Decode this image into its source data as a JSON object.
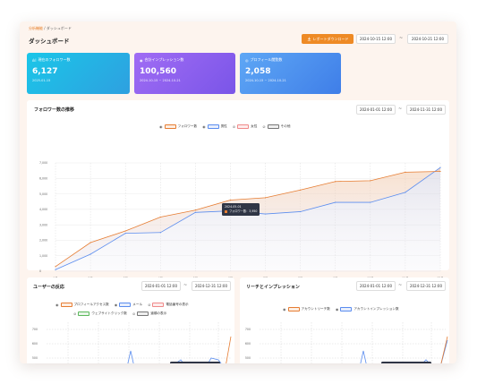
{
  "breadcrumb": {
    "home": "分析機能",
    "separator": " / ",
    "current": "ダッシュボード"
  },
  "page_title": "ダッシュボード",
  "header": {
    "download_label": "レポートダウンロード",
    "date_from": "2024-10-15 12:00",
    "date_to": "2024-10-21 12:00",
    "tilde": "~"
  },
  "cards": [
    {
      "label": "現在のフォロワー数",
      "value": "6,127",
      "sub": "2025-01-15",
      "icon": "chart-icon",
      "color_from": "#1bc6e8",
      "color_to": "#2ea0e0"
    },
    {
      "label": "合計インプレッション数",
      "value": "100,560",
      "sub": "2024-10-15 ~ 2024-10-21",
      "icon": "eye-icon",
      "color_from": "#a06cf4",
      "color_to": "#7a55e8"
    },
    {
      "label": "プロフィール閲覧数",
      "value": "2,058",
      "sub": "2024-10-15 ~ 2024-10-21",
      "icon": "user-icon",
      "color_from": "#5ea7f5",
      "color_to": "#3f7ee8"
    }
  ],
  "followers_panel": {
    "title": "フォロワー数の推移",
    "date_from": "2024-01-01 12:00",
    "date_to": "2024-11-31 12:00",
    "tilde": "~",
    "legend": [
      {
        "label": "フォロワー数",
        "color": "#e67d33",
        "icon": "eye-icon"
      },
      {
        "label": "男性",
        "color": "#5b8def",
        "icon": "eye-icon"
      },
      {
        "label": "女性",
        "color": "#f08a8a",
        "icon": "eye-off-icon"
      },
      {
        "label": "その他",
        "color": "#777777",
        "icon": "eye-off-icon"
      }
    ],
    "tooltip": {
      "date": "2024-05-01",
      "text": "フォロワー数：3,950"
    }
  },
  "users_panel": {
    "title": "ユーザーの反応",
    "date_from": "2024-01-01 12:00",
    "date_to": "2024-12-31 12:00",
    "tilde": "~",
    "legend_row1": [
      {
        "label": "プロフィールアクセス数",
        "color": "#e67d33",
        "icon": "eye-icon"
      },
      {
        "label": "メール",
        "color": "#5b8def",
        "icon": "eye-icon"
      },
      {
        "label": "電話番号の表示",
        "color": "#f08a8a",
        "icon": "eye-off-icon"
      }
    ],
    "legend_row2": [
      {
        "label": "ウェブサイトクリック数",
        "color": "#5cb85c",
        "icon": "eye-off-icon"
      },
      {
        "label": "道順の表示",
        "color": "#777777",
        "icon": "eye-off-icon"
      }
    ],
    "y_ticks": [
      "700",
      "600",
      "500"
    ]
  },
  "reach_panel": {
    "title": "リーチとインプレッション",
    "date_from": "2024-01-01 12:00",
    "date_to": "2024-12-31 12:00",
    "tilde": "~",
    "legend": [
      {
        "label": "アカウントリーチ数",
        "color": "#e67d33",
        "icon": "eye-icon"
      },
      {
        "label": "アカウントインプレッション数",
        "color": "#5b8def",
        "icon": "eye-icon"
      }
    ],
    "y_ticks": [
      "700",
      "600",
      "500"
    ]
  },
  "chart_data": [
    {
      "type": "area",
      "title": "フォロワー数の推移",
      "x": [
        "1月",
        "2月",
        "3月",
        "4月",
        "5月",
        "6月",
        "7月",
        "8月",
        "9月",
        "10月",
        "11月",
        "12月"
      ],
      "y_ticks": [
        "7,000",
        "6,000",
        "5,000",
        "4,000",
        "3,000",
        "2,000",
        "1,000",
        "0"
      ],
      "ylim": [
        0,
        7000
      ],
      "grid": true,
      "legend_position": "top",
      "series": [
        {
          "name": "フォロワー数",
          "color": "#e67d33",
          "values": [
            300,
            1850,
            2600,
            3500,
            3950,
            4600,
            4750,
            5250,
            5800,
            5850,
            6400,
            6450
          ]
        },
        {
          "name": "男性",
          "color": "#5b8def",
          "values": [
            100,
            1100,
            2450,
            2500,
            3800,
            3900,
            3700,
            3850,
            4450,
            4450,
            5100,
            6700
          ]
        }
      ]
    }
  ]
}
